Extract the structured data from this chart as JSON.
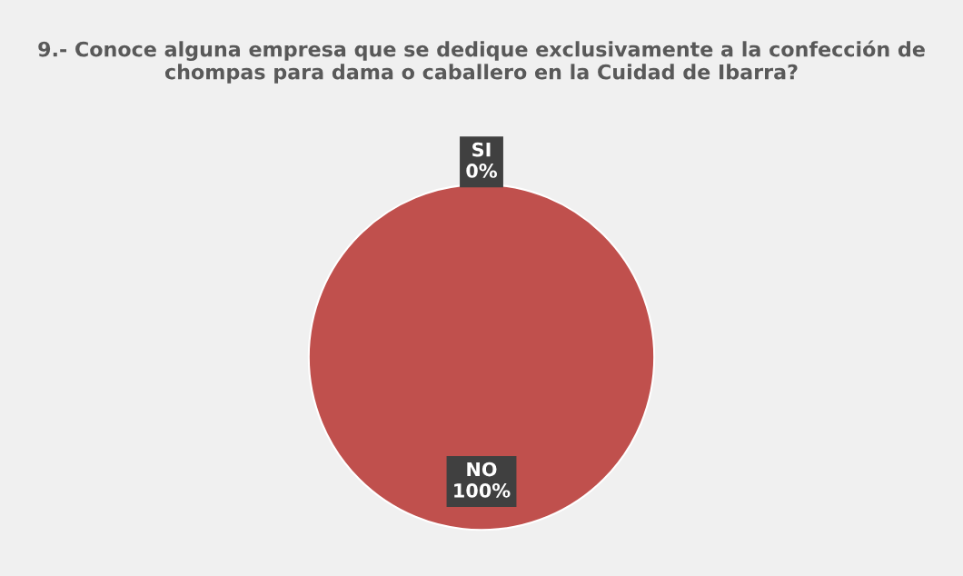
{
  "chart_data": {
    "type": "pie",
    "title": "9.- Conoce alguna empresa que se dedique exclusivamente a la confección de chompas para dama o caballero en la Cuidad de Ibarra?",
    "categories": [
      "SI",
      "NO"
    ],
    "values": [
      0,
      100
    ],
    "value_labels": [
      "0%",
      "100%"
    ],
    "colors": [
      "#4f81bd",
      "#c0504d"
    ],
    "legend": false
  }
}
